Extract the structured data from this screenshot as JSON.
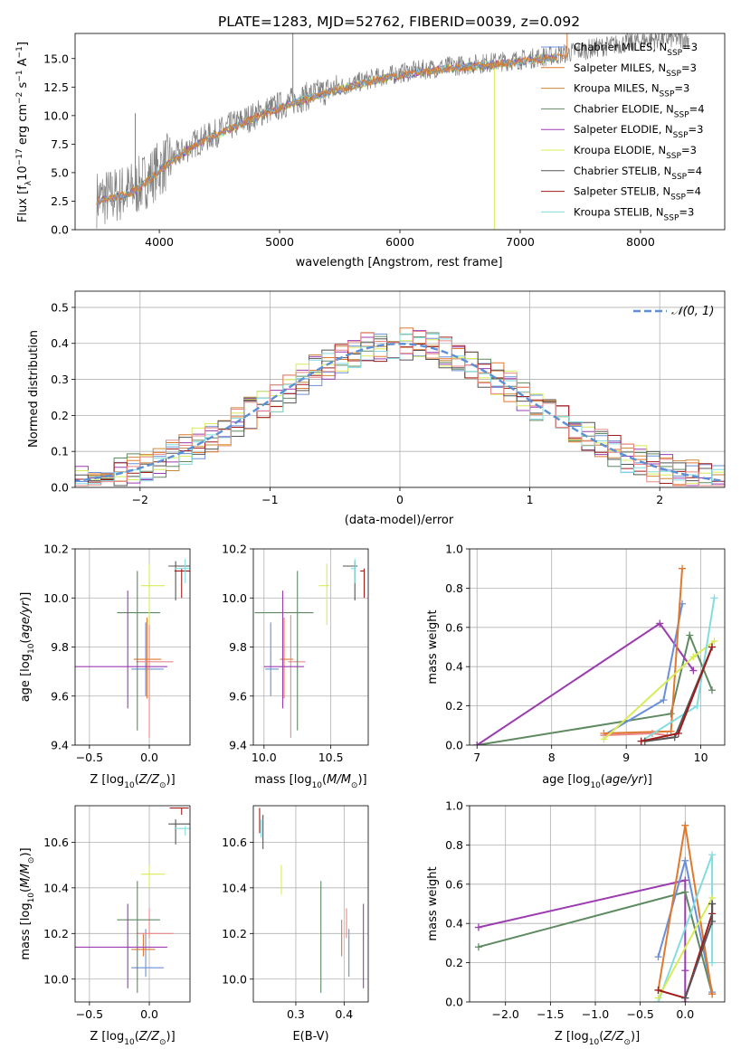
{
  "title": "PLATE=1283, MJD=52762, FIBERID=0039, z=0.092",
  "colors": {
    "Chabrier MILES": "#6a8fd8",
    "Salpeter MILES": "#e0782e",
    "Kroupa MILES": "#c9883a",
    "Chabrier ELODIE": "#5e8a62",
    "Salpeter ELODIE": "#9b3cb0",
    "Kroupa ELODIE": "#d8ec58",
    "Chabrier STELIB": "#555555",
    "Salpeter STELIB": "#a01c1c",
    "Kroupa STELIB": "#82dce0",
    "extra": "#e98888",
    "normal": "#5b8fd6",
    "observed": "#7f7f7f"
  },
  "legend_models": [
    {
      "name": "Chabrier MILES",
      "label": "Chabrier MILES, N",
      "sub": "SSP",
      "suffix": "=3"
    },
    {
      "name": "Salpeter MILES",
      "label": "Salpeter MILES, N",
      "sub": "SSP",
      "suffix": "=3"
    },
    {
      "name": "Kroupa MILES",
      "label": "Kroupa MILES, N",
      "sub": "SSP",
      "suffix": "=3"
    },
    {
      "name": "Chabrier ELODIE",
      "label": "Chabrier ELODIE, N",
      "sub": "SSP",
      "suffix": "=4"
    },
    {
      "name": "Salpeter ELODIE",
      "label": "Salpeter ELODIE, N",
      "sub": "SSP",
      "suffix": "=3"
    },
    {
      "name": "Kroupa ELODIE",
      "label": "Kroupa ELODIE, N",
      "sub": "SSP",
      "suffix": "=3"
    },
    {
      "name": "Chabrier STELIB",
      "label": "Chabrier STELIB, N",
      "sub": "SSP",
      "suffix": "=4"
    },
    {
      "name": "Salpeter STELIB",
      "label": "Salpeter STELIB, N",
      "sub": "SSP",
      "suffix": "=4"
    },
    {
      "name": "Kroupa STELIB",
      "label": "Kroupa STELIB, N",
      "sub": "SSP",
      "suffix": "=3"
    }
  ],
  "chart_data": [
    {
      "id": "spectrum",
      "type": "line",
      "title": "PLATE=1283, MJD=52762, FIBERID=0039, z=0.092",
      "xlabel": "wavelength [Angstrom, rest frame]",
      "ylabel": "Flux [f",
      "ylabel_parts": [
        "Flux [f",
        "λ",
        "10",
        "−17",
        " erg cm",
        "−2",
        " s",
        "−1",
        " A",
        "−1",
        "]"
      ],
      "xlim": [
        3300,
        8700
      ],
      "ylim": [
        0,
        17.2
      ],
      "xticks": [
        4000,
        5000,
        6000,
        7000,
        8000
      ],
      "yticks": [
        0.0,
        2.5,
        5.0,
        7.5,
        10.0,
        12.5,
        15.0
      ],
      "ytick_labels": [
        "0.0",
        "2.5",
        "5.0",
        "7.5",
        "10.0",
        "12.5",
        "15.0"
      ],
      "observed_continuum": {
        "x": [
          3480,
          3600,
          3800,
          3950,
          4100,
          4300,
          4600,
          4900,
          5200,
          5500,
          5800,
          6100,
          6400,
          6700,
          7000,
          7300,
          7600,
          7900,
          8200,
          8400
        ],
        "y": [
          2.7,
          2.9,
          3.6,
          4.9,
          6.2,
          7.6,
          9.1,
          10.5,
          11.6,
          12.5,
          13.3,
          13.9,
          14.3,
          14.6,
          14.9,
          15.3,
          15.9,
          16.4,
          16.8,
          16.7
        ]
      },
      "spikes": [
        {
          "x": 5110,
          "y": 17.2
        },
        {
          "x": 3800,
          "y": 10.2
        },
        {
          "x": 6785,
          "y": 0.0
        },
        {
          "x": 7390,
          "y": 17.2
        }
      ],
      "grid": false,
      "legend": "top-right"
    },
    {
      "id": "residual_hist",
      "type": "area",
      "xlabel": "(data-model)/error",
      "ylabel": "Normed distribution",
      "xlim": [
        -2.5,
        2.5
      ],
      "ylim": [
        0,
        0.545
      ],
      "xticks": [
        -2,
        -1,
        0,
        1,
        2
      ],
      "xtick_labels": [
        "−2",
        "−1",
        "0",
        "1",
        "2"
      ],
      "yticks": [
        0.0,
        0.1,
        0.2,
        0.3,
        0.4,
        0.5
      ],
      "ytick_labels": [
        "0.0",
        "0.1",
        "0.2",
        "0.3",
        "0.4",
        "0.5"
      ],
      "bin_width": 0.1,
      "normal_label": "𝒩(0, 1)",
      "grid": true,
      "legend": "top-right"
    },
    {
      "id": "age_vs_Z",
      "type": "scatter",
      "xlabel": "Z [log",
      "xlabel_tail": "(Z/Z",
      "ylabel": "age  [log",
      "ylabel_tail": "(age/yr)]",
      "xlim": [
        -0.62,
        0.34
      ],
      "ylim": [
        9.4,
        10.2
      ],
      "xticks": [
        -0.5,
        0.0
      ],
      "xtick_labels": [
        "−0.5",
        "0.0"
      ],
      "yticks": [
        9.4,
        9.6,
        9.8,
        10.0,
        10.2
      ],
      "ytick_labels": [
        "9.4",
        "9.6",
        "9.8",
        "10.0",
        "10.2"
      ],
      "points": [
        {
          "m": "Chabrier MILES",
          "x": -0.03,
          "xe": [
            0.12,
            0.15
          ],
          "y": 9.71,
          "ye": [
            0.11,
            0.19
          ]
        },
        {
          "m": "Salpeter MILES",
          "x": -0.02,
          "xe": [
            0.11,
            0.12
          ],
          "y": 9.75,
          "ye": [
            0.16,
            0.17
          ]
        },
        {
          "m": "extra",
          "x": 0.0,
          "xe": [
            0.11,
            0.2
          ],
          "y": 9.74,
          "ye": [
            0.31,
            0.19
          ]
        },
        {
          "m": "Chabrier ELODIE",
          "x": -0.1,
          "xe": [
            0.17,
            0.19
          ],
          "y": 9.94,
          "ye": [
            0.48,
            0.17
          ]
        },
        {
          "m": "Salpeter ELODIE",
          "x": -0.18,
          "xe": [
            0.44,
            0.33
          ],
          "y": 9.72,
          "ye": [
            0.17,
            0.31
          ]
        },
        {
          "m": "Kroupa ELODIE",
          "x": 0.0,
          "xe": [
            0.07,
            0.13
          ],
          "y": 10.05,
          "ye": [
            0.16,
            0.09
          ]
        },
        {
          "m": "Chabrier STELIB",
          "x": 0.22,
          "xe": [
            0.06,
            0.12
          ],
          "y": 10.13,
          "ye": [
            0.14,
            0.02
          ]
        },
        {
          "m": "Salpeter STELIB",
          "x": 0.27,
          "xe": [
            0.06,
            0.1
          ],
          "y": 10.11,
          "ye": [
            0.11,
            0.01
          ]
        },
        {
          "m": "Kroupa STELIB",
          "x": 0.3,
          "xe": [
            0.09,
            0.05
          ],
          "y": 10.12,
          "ye": [
            0.06,
            0.04
          ]
        }
      ]
    },
    {
      "id": "age_vs_mass",
      "type": "scatter",
      "xlabel": "mass [log",
      "xlabel_tail": "(M/M",
      "xlim": [
        9.92,
        10.78
      ],
      "ylim": [
        9.4,
        10.2
      ],
      "xticks": [
        10.0,
        10.5
      ],
      "xtick_labels": [
        "10.0",
        "10.5"
      ],
      "yticks": [
        9.4,
        9.6,
        9.8,
        10.0,
        10.2
      ],
      "ytick_labels": [
        "9.4",
        "9.6",
        "9.8",
        "10.0",
        "10.2"
      ],
      "points": [
        {
          "m": "Chabrier MILES",
          "x": 10.05,
          "xe": [
            0.04,
            0.06
          ],
          "y": 9.71,
          "ye": [
            0.11,
            0.19
          ]
        },
        {
          "m": "Salpeter MILES",
          "x": 10.15,
          "xe": [
            0.03,
            0.07
          ],
          "y": 9.75,
          "ye": [
            0.16,
            0.17
          ]
        },
        {
          "m": "extra",
          "x": 10.2,
          "xe": [
            0.02,
            0.11
          ],
          "y": 9.74,
          "ye": [
            0.31,
            0.19
          ]
        },
        {
          "m": "Chabrier ELODIE",
          "x": 10.25,
          "xe": [
            0.32,
            0.12
          ],
          "y": 9.94,
          "ye": [
            0.48,
            0.17
          ]
        },
        {
          "m": "Salpeter ELODIE",
          "x": 10.14,
          "xe": [
            0.14,
            0.16
          ],
          "y": 9.72,
          "ye": [
            0.17,
            0.31
          ]
        },
        {
          "m": "Kroupa ELODIE",
          "x": 10.47,
          "xe": [
            0.06,
            0.02
          ],
          "y": 10.05,
          "ye": [
            0.16,
            0.09
          ]
        },
        {
          "m": "Chabrier STELIB",
          "x": 10.68,
          "xe": [
            0.09,
            0.02
          ],
          "y": 10.13,
          "ye": [
            0.14,
            0.02
          ]
        },
        {
          "m": "Salpeter STELIB",
          "x": 10.75,
          "xe": [
            0.03,
            0.0
          ],
          "y": 10.11,
          "ye": [
            0.11,
            0.01
          ]
        },
        {
          "m": "Kroupa STELIB",
          "x": 10.68,
          "xe": [
            0.03,
            0.01
          ],
          "y": 10.12,
          "ye": [
            0.06,
            0.04
          ]
        }
      ]
    },
    {
      "id": "weight_vs_age",
      "type": "line",
      "xlabel": "age  [log",
      "xlabel_tail": "(age/yr)]",
      "ylabel": "mass weight",
      "xlim": [
        6.9,
        10.32
      ],
      "ylim": [
        0,
        1.0
      ],
      "xticks": [
        7,
        8,
        9,
        10
      ],
      "xtick_labels": [
        "7",
        "8",
        "9",
        "10"
      ],
      "yticks": [
        0.0,
        0.2,
        0.4,
        0.6,
        0.8,
        1.0
      ],
      "ytick_labels": [
        "0.0",
        "0.2",
        "0.4",
        "0.6",
        "0.8",
        "1.0"
      ],
      "series": [
        {
          "m": "Chabrier ELODIE",
          "x": [
            7.0,
            9.6,
            9.85,
            10.15
          ],
          "y": [
            0.0,
            0.16,
            0.56,
            0.28
          ]
        },
        {
          "m": "Salpeter ELODIE",
          "x": [
            7.0,
            9.45,
            9.9
          ],
          "y": [
            0.0,
            0.62,
            0.38
          ]
        },
        {
          "m": "Chabrier MILES",
          "x": [
            8.7,
            9.5,
            9.75
          ],
          "y": [
            0.05,
            0.23,
            0.72
          ]
        },
        {
          "m": "Salpeter MILES",
          "x": [
            8.7,
            9.6,
            9.75
          ],
          "y": [
            0.06,
            0.07,
            0.9
          ]
        },
        {
          "m": "extra",
          "x": [
            8.7,
            9.35,
            9.55
          ],
          "y": [
            0.05,
            0.06,
            0.05
          ]
        },
        {
          "m": "Kroupa ELODIE",
          "x": [
            8.7,
            9.9,
            10.18
          ],
          "y": [
            0.03,
            0.45,
            0.53
          ]
        },
        {
          "m": "Kroupa STELIB",
          "x": [
            9.2,
            9.95,
            10.18
          ],
          "y": [
            0.02,
            0.2,
            0.75
          ]
        },
        {
          "m": "Chabrier STELIB",
          "x": [
            9.25,
            9.65,
            10.15
          ],
          "y": [
            0.02,
            0.04,
            0.5
          ]
        },
        {
          "m": "Salpeter STELIB",
          "x": [
            9.2,
            9.7,
            10.15
          ],
          "y": [
            0.02,
            0.06,
            0.5
          ]
        }
      ]
    },
    {
      "id": "mass_vs_Z",
      "type": "scatter",
      "ylabel": "mass [log",
      "ylabel_tail": "(M/M",
      "xlabel": "Z [log",
      "xlabel_tail": "(Z/Z",
      "xlim": [
        -0.62,
        0.34
      ],
      "ylim": [
        9.9,
        10.76
      ],
      "xticks": [
        -0.5,
        0.0
      ],
      "xtick_labels": [
        "−0.5",
        "0.0"
      ],
      "yticks": [
        10.0,
        10.2,
        10.4,
        10.6
      ],
      "ytick_labels": [
        "10.0",
        "10.2",
        "10.4",
        "10.6"
      ],
      "points": [
        {
          "m": "Chabrier MILES",
          "x": -0.03,
          "xe": [
            0.12,
            0.15
          ],
          "y": 10.05,
          "ye": [
            0.04,
            0.17
          ]
        },
        {
          "m": "Salpeter MILES",
          "x": -0.05,
          "xe": [
            0.1,
            0.1
          ],
          "y": 10.13,
          "ye": [
            0.03,
            0.07
          ]
        },
        {
          "m": "extra",
          "x": 0.0,
          "xe": [
            0.11,
            0.2
          ],
          "y": 10.2,
          "ye": [
            0.02,
            0.11
          ]
        },
        {
          "m": "Chabrier ELODIE",
          "x": -0.1,
          "xe": [
            0.17,
            0.19
          ],
          "y": 10.26,
          "ye": [
            0.32,
            0.17
          ]
        },
        {
          "m": "Salpeter ELODIE",
          "x": -0.18,
          "xe": [
            0.44,
            0.33
          ],
          "y": 10.14,
          "ye": [
            0.18,
            0.19
          ]
        },
        {
          "m": "Kroupa ELODIE",
          "x": 0.0,
          "xe": [
            0.07,
            0.13
          ],
          "y": 10.46,
          "ye": [
            0.06,
            0.04
          ]
        },
        {
          "m": "Chabrier STELIB",
          "x": 0.22,
          "xe": [
            0.06,
            0.12
          ],
          "y": 10.68,
          "ye": [
            0.09,
            0.02
          ]
        },
        {
          "m": "Salpeter STELIB",
          "x": 0.27,
          "xe": [
            0.1,
            0.06
          ],
          "y": 10.75,
          "ye": [
            0.03,
            0.0
          ]
        },
        {
          "m": "Kroupa STELIB",
          "x": 0.3,
          "xe": [
            0.09,
            0.04
          ],
          "y": 10.66,
          "ye": [
            0.03,
            0.01
          ]
        }
      ]
    },
    {
      "id": "mass_vs_ebv",
      "type": "scatter",
      "xlabel": "E(B-V)",
      "xlim": [
        0.212,
        0.45
      ],
      "ylim": [
        9.9,
        10.76
      ],
      "xticks": [
        0.3,
        0.4
      ],
      "xtick_labels": [
        "0.3",
        "0.4"
      ],
      "yticks": [
        10.0,
        10.2,
        10.4,
        10.6
      ],
      "ytick_labels": [
        "10.0",
        "10.2",
        "10.4",
        "10.6"
      ],
      "points": [
        {
          "m": "Chabrier MILES",
          "x": 0.41,
          "y": 10.05,
          "ye": [
            0.04,
            0.17
          ]
        },
        {
          "m": "Salpeter MILES",
          "x": 0.395,
          "y": 10.13,
          "ye": [
            0.03,
            0.13
          ]
        },
        {
          "m": "extra",
          "x": 0.405,
          "y": 10.2,
          "ye": [
            0.02,
            0.11
          ]
        },
        {
          "m": "Chabrier ELODIE",
          "x": 0.352,
          "y": 10.26,
          "ye": [
            0.32,
            0.17
          ]
        },
        {
          "m": "Salpeter ELODIE",
          "x": 0.44,
          "y": 10.14,
          "ye": [
            0.18,
            0.19
          ]
        },
        {
          "m": "Kroupa ELODIE",
          "x": 0.27,
          "y": 10.43,
          "ye": [
            0.06,
            0.07
          ]
        },
        {
          "m": "Chabrier STELIB",
          "x": 0.232,
          "y": 10.64,
          "ye": [
            0.07,
            0.08
          ]
        },
        {
          "m": "Salpeter STELIB",
          "x": 0.225,
          "y": 10.69,
          "ye": [
            0.05,
            0.06
          ]
        },
        {
          "m": "Kroupa STELIB",
          "x": 0.228,
          "y": 10.66,
          "ye": [
            0.04,
            0.04
          ]
        }
      ]
    },
    {
      "id": "weight_vs_Z",
      "type": "line",
      "xlabel": "Z [log",
      "xlabel_tail": "(Z/Z",
      "ylabel": "mass weight",
      "xlim": [
        -2.4,
        0.44
      ],
      "ylim": [
        0,
        1.0
      ],
      "xticks": [
        -2.0,
        -1.5,
        -1.0,
        -0.5,
        0.0
      ],
      "xtick_labels": [
        "−2.0",
        "−1.5",
        "−1.0",
        "−0.5",
        "0.0"
      ],
      "yticks": [
        0.0,
        0.2,
        0.4,
        0.6,
        0.8,
        1.0
      ],
      "ytick_labels": [
        "0.0",
        "0.2",
        "0.4",
        "0.6",
        "0.8",
        "1.0"
      ],
      "series": [
        {
          "m": "Salpeter ELODIE",
          "x": [
            -2.3,
            0.0,
            0.0,
            0.0
          ],
          "y": [
            0.38,
            0.62,
            0.16,
            0.0
          ]
        },
        {
          "m": "Chabrier ELODIE",
          "x": [
            -2.3,
            0.0,
            0.3
          ],
          "y": [
            0.28,
            0.56,
            0.04
          ]
        },
        {
          "m": "Chabrier MILES",
          "x": [
            -0.3,
            0.0,
            0.3
          ],
          "y": [
            0.23,
            0.72,
            0.05
          ]
        },
        {
          "m": "Salpeter MILES",
          "x": [
            -0.3,
            0.0,
            0.3
          ],
          "y": [
            0.06,
            0.9,
            0.04
          ]
        },
        {
          "m": "Kroupa STELIB",
          "x": [
            -0.3,
            0.3,
            0.3
          ],
          "y": [
            0.0,
            0.75,
            0.2
          ]
        },
        {
          "m": "Kroupa ELODIE",
          "x": [
            -0.3,
            0.3
          ],
          "y": [
            0.02,
            0.53
          ]
        },
        {
          "m": "Salpeter STELIB",
          "x": [
            -0.3,
            0.0,
            0.3,
            0.3
          ],
          "y": [
            0.06,
            0.02,
            0.45,
            0.5
          ]
        },
        {
          "m": "Chabrier STELIB",
          "x": [
            0.0,
            0.3,
            0.3
          ],
          "y": [
            0.02,
            0.41,
            0.5
          ]
        }
      ]
    }
  ]
}
